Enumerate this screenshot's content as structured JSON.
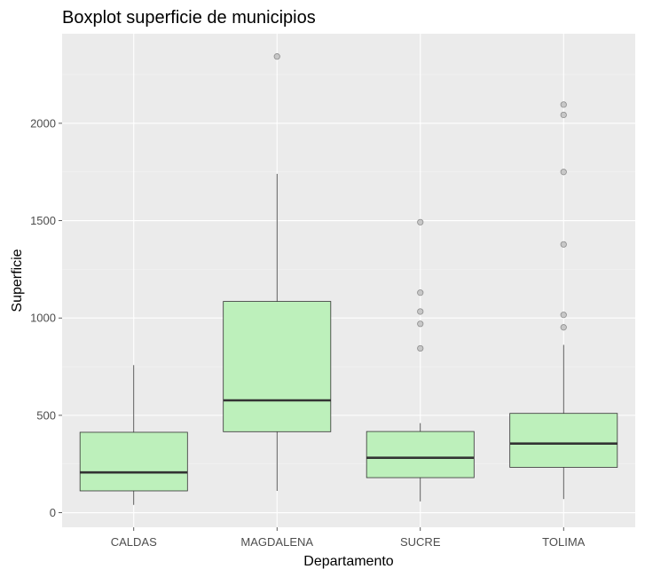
{
  "chart_data": {
    "type": "boxplot",
    "title": "Boxplot superficie de municipios",
    "xlabel": "Departamento",
    "ylabel": "Superficie",
    "categories": [
      "CALDAS",
      "MAGDALENA",
      "SUCRE",
      "TOLIMA"
    ],
    "ylim": [
      -75,
      2460
    ],
    "yticks": [
      0,
      500,
      1000,
      1500,
      2000
    ],
    "ytick_labels": [
      "0",
      "500",
      "1000",
      "1500",
      "2000"
    ],
    "grid": true,
    "boxes": [
      {
        "category": "CALDAS",
        "whisker_low": 40,
        "q1": 112,
        "median": 207,
        "q3": 413,
        "whisker_high": 758,
        "outliers": []
      },
      {
        "category": "MAGDALENA",
        "whisker_low": 112,
        "q1": 416,
        "median": 577,
        "q3": 1085,
        "whisker_high": 1740,
        "outliers": [
          2343
        ]
      },
      {
        "category": "SUCRE",
        "whisker_low": 58,
        "q1": 180,
        "median": 282,
        "q3": 417,
        "whisker_high": 460,
        "outliers": [
          844,
          970,
          1033,
          1130,
          1492
        ]
      },
      {
        "category": "TOLIMA",
        "whisker_low": 70,
        "q1": 233,
        "median": 355,
        "q3": 510,
        "whisker_high": 862,
        "outliers": [
          952,
          1016,
          1378,
          1750,
          2043,
          2096
        ]
      }
    ],
    "colors": {
      "box_fill": "#bdf0bb",
      "box_stroke": "#333333",
      "median": "#333333",
      "outlier_fill": "#bfbfbf",
      "outlier_stroke": "#8c8c8c",
      "panel_bg": "#ebebeb",
      "grid_major": "#ffffff",
      "grid_minor": "#f4f4f4"
    }
  }
}
